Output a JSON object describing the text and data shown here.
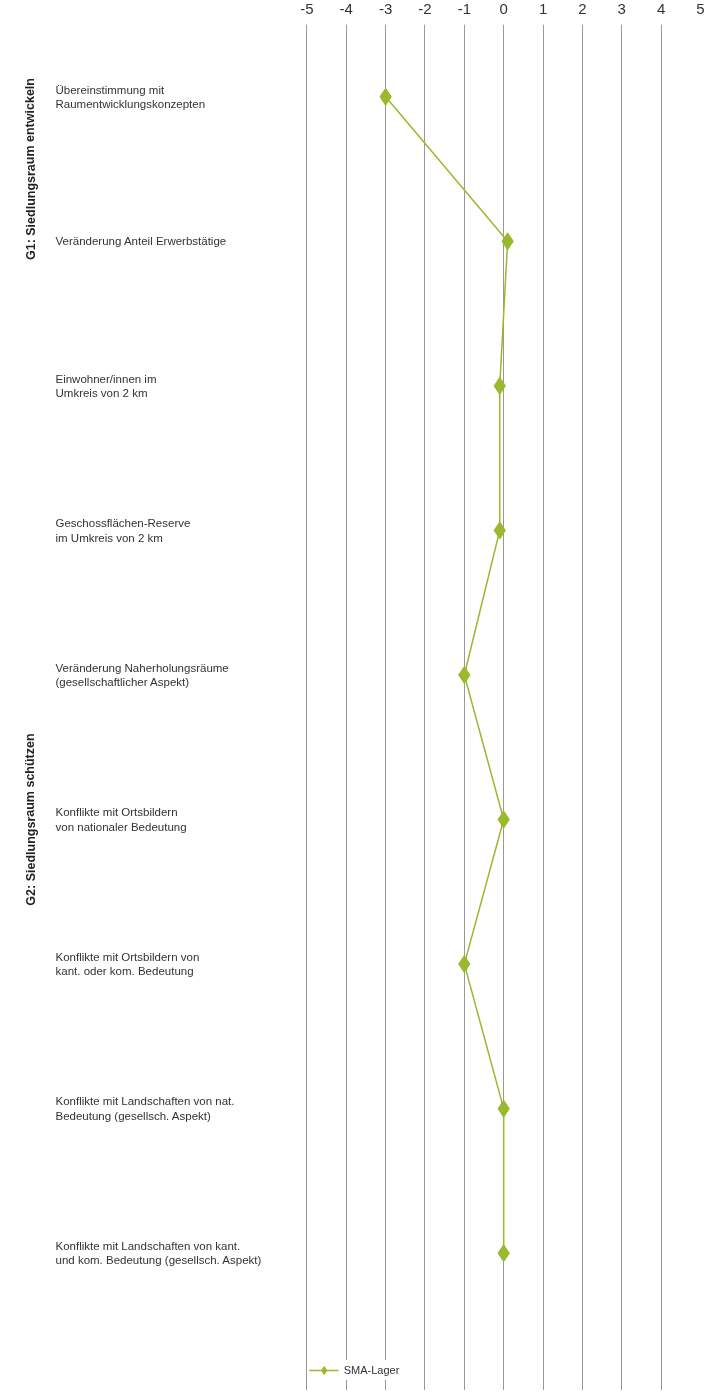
{
  "chart_data": {
    "type": "line",
    "orientation": "horizontal",
    "categories": [
      "Übereinstimmung mit\nRaumentwicklungskonzepten",
      "Veränderung Anteil Erwerbstätige",
      "Einwohner/innen im\nUmkreis von 2 km",
      "Geschossflächen-Reserve\nim Umkreis von 2 km",
      "Veränderung Naherholungsräume\n(gesellschaftlicher Aspekt)",
      "Konflikte mit Ortsbildern\nvon nationaler Bedeutung",
      "Konflikte mit Ortsbildern von\nkant. oder kom. Bedeutung",
      "Konflikte mit Landschaften von nat.\nBedeutung (gesellsch. Aspekt)",
      "Konflikte mit Landschaften von kant.\nund kom. Bedeutung (gesellsch. Aspekt)"
    ],
    "series": [
      {
        "name": "SMA-Lager",
        "color": "#9ab92e",
        "values": [
          -3,
          0.1,
          -0.1,
          -0.1,
          -1,
          0,
          -1,
          0,
          0
        ]
      }
    ],
    "xlim": [
      -5,
      5
    ],
    "xticks": [
      -5,
      -4,
      -3,
      -2,
      -1,
      0,
      1,
      2,
      3,
      4,
      5
    ],
    "grid": "x",
    "marker": "diamond",
    "line_style": "solid",
    "legend": "bottom",
    "annotations": [
      "G1: Siedlungsraum entwickeln",
      "G2: Siedlungsraum schützen"
    ]
  }
}
